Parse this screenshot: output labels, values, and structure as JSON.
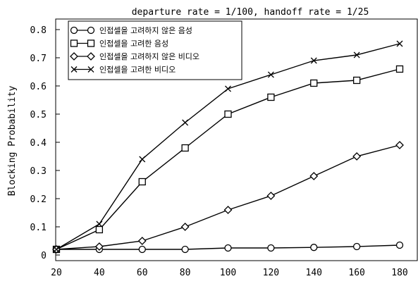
{
  "chart_data": {
    "type": "line",
    "title": "departure rate = 1/100, handoff rate = 1/25",
    "xlabel": "",
    "ylabel": "Blocking Probability",
    "x": [
      20,
      40,
      60,
      80,
      100,
      120,
      140,
      160,
      180
    ],
    "xlim": [
      20,
      180
    ],
    "ylim": [
      0,
      0.8
    ],
    "x_ticks": [
      "20",
      "40",
      "60",
      "80",
      "100",
      "120",
      "140",
      "160",
      "180"
    ],
    "y_ticks": [
      "0",
      "0.1",
      "0.2",
      "0.3",
      "0.4",
      "0.5",
      "0.6",
      "0.7",
      "0.8"
    ],
    "grid": false,
    "legend_position": "top-left",
    "series": [
      {
        "name": "인접셀을 고려하지 않은 음성",
        "marker": "circle",
        "color": "#000000",
        "values": [
          0.02,
          0.02,
          0.02,
          0.02,
          0.025,
          0.025,
          0.027,
          0.03,
          0.035
        ]
      },
      {
        "name": "인접셀을 고려한 음성",
        "marker": "square",
        "color": "#000000",
        "values": [
          0.02,
          0.09,
          0.26,
          0.38,
          0.5,
          0.56,
          0.61,
          0.62,
          0.66
        ]
      },
      {
        "name": "인접셀을 고려하지 않은 비디오",
        "marker": "diamond",
        "color": "#000000",
        "values": [
          0.02,
          0.03,
          0.05,
          0.1,
          0.16,
          0.21,
          0.28,
          0.35,
          0.39
        ]
      },
      {
        "name": "인접셀을 고려한 비디오",
        "marker": "x",
        "color": "#000000",
        "values": [
          0.02,
          0.11,
          0.34,
          0.47,
          0.59,
          0.64,
          0.69,
          0.71,
          0.75
        ]
      }
    ]
  }
}
